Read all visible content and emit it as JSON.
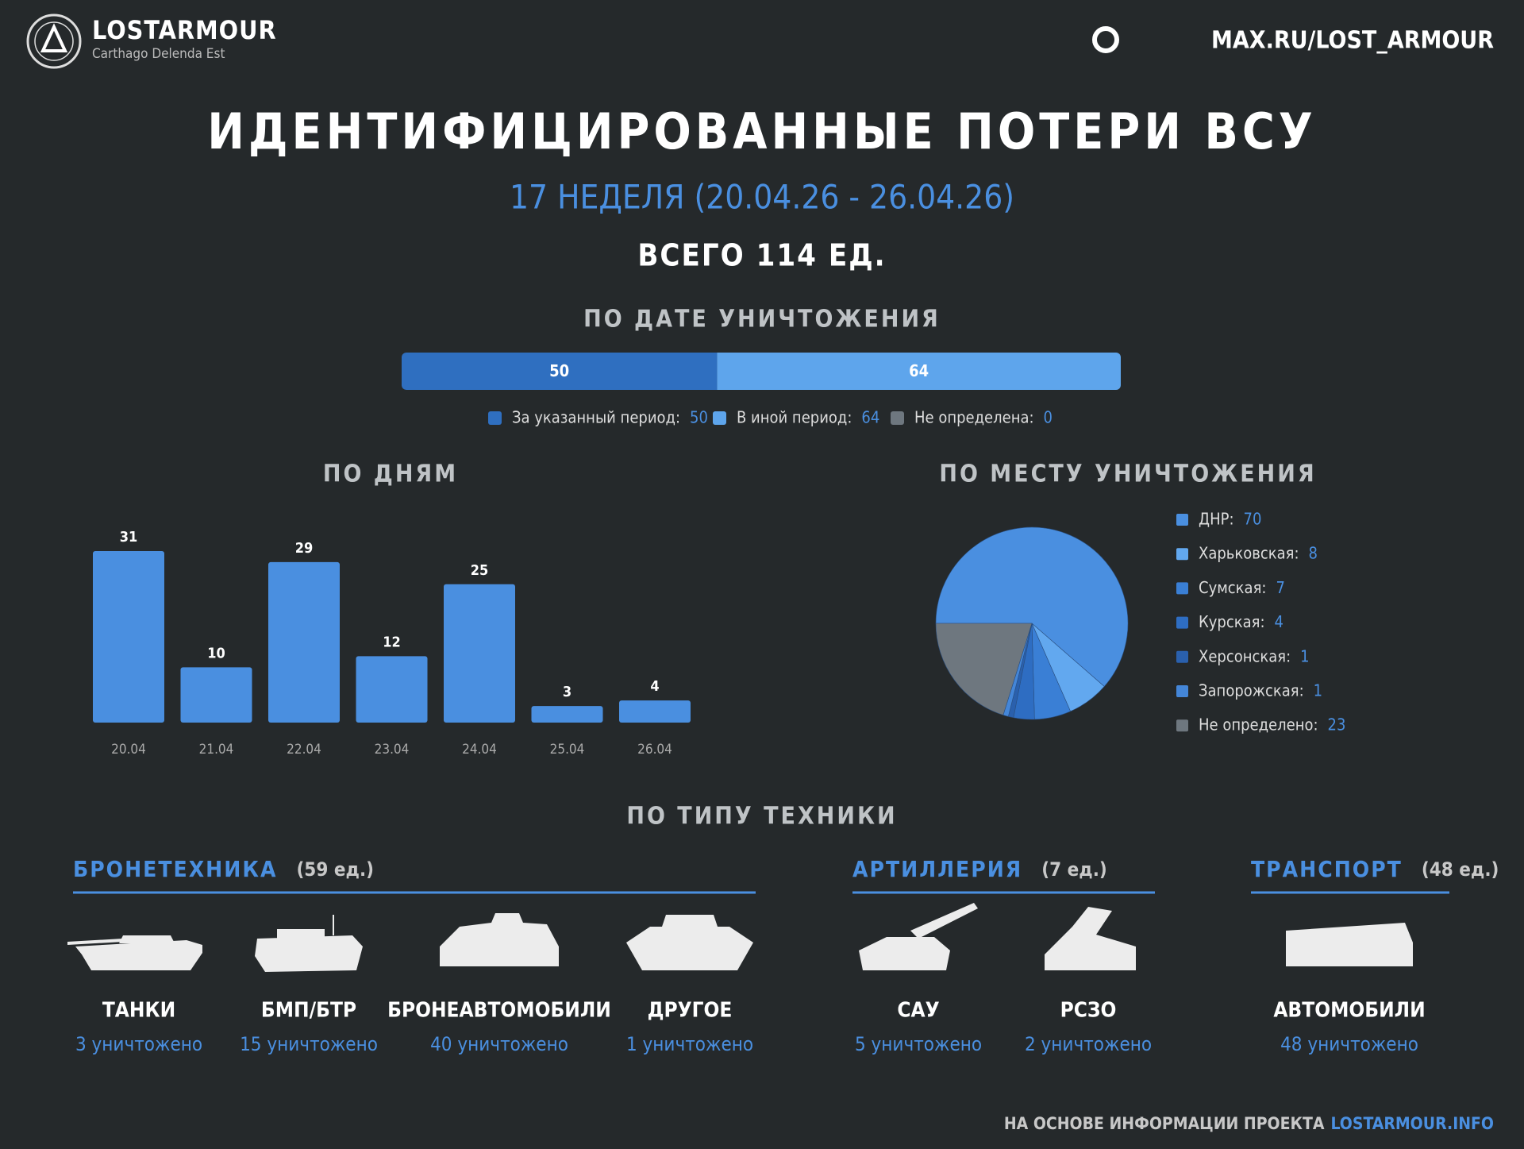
{
  "header": {
    "brand": "LOSTARMOUR",
    "tagline": "Carthago Delenda Est",
    "link": "MAX.RU/LOST_ARMOUR"
  },
  "title": "ИДЕНТИФИЦИРОВАННЫЕ ПОТЕРИ ВСУ",
  "subtitle": "17 НЕДЕЛЯ (20.04.26 - 26.04.26)",
  "total": "ВСЕГО 114 ЕД.",
  "chart_data": [
    {
      "type": "stacked_bar",
      "title": "ПО ДАТЕ УНИЧТОЖЕНИЯ",
      "series": [
        {
          "name": "За указанный период:",
          "color": "#2f6fc0",
          "values": [
            50
          ]
        },
        {
          "name": "В иной период:",
          "color": "#5ea5ec",
          "values": [
            64
          ]
        },
        {
          "name": "Не определена:",
          "color": "#6e777f",
          "values": [
            0
          ]
        }
      ]
    },
    {
      "type": "bar",
      "title": "ПО ДНЯМ",
      "categories": [
        "20.04",
        "21.04",
        "22.04",
        "23.04",
        "24.04",
        "25.04",
        "26.04"
      ],
      "values": [
        31,
        10,
        29,
        12,
        25,
        3,
        4
      ],
      "color": "#4a8fe0"
    },
    {
      "type": "pie",
      "title": "ПО МЕСТУ УНИЧТОЖЕНИЯ",
      "categories": [
        "ДНР:",
        "Харьковская:",
        "Сумская:",
        "Курская:",
        "Херсонская:",
        "Запорожская:",
        "Не определено:"
      ],
      "values": [
        70,
        8,
        7,
        4,
        1,
        1,
        23
      ],
      "colors": [
        "#4a8fe0",
        "#62a8ef",
        "#3a7fd5",
        "#2e6dc2",
        "#2a60ad",
        "#4486d8",
        "#6e777f"
      ]
    }
  ],
  "equipment": {
    "title": "ПО ТИПУ ТЕХНИКИ",
    "groups": [
      {
        "name": "БРОНЕТЕХНИКА",
        "count": "(59 ед.)",
        "items": [
          {
            "label": "ТАНКИ",
            "value": "3 уничтожено"
          },
          {
            "label": "БМП/БТР",
            "value": "15 уничтожено"
          },
          {
            "label": "БРОНЕАВТОМОБИЛИ",
            "value": "40 уничтожено"
          },
          {
            "label": "ДРУГОЕ",
            "value": "1 уничтожено"
          }
        ]
      },
      {
        "name": "АРТИЛЛЕРИЯ",
        "count": "(7 ед.)",
        "items": [
          {
            "label": "САУ",
            "value": "5 уничтожено"
          },
          {
            "label": "РСЗО",
            "value": "2 уничтожено"
          }
        ]
      },
      {
        "name": "ТРАНСПОРТ",
        "count": "(48 ед.)",
        "items": [
          {
            "label": "АВТОМОБИЛИ",
            "value": "48 уничтожено"
          }
        ]
      }
    ]
  },
  "footer": {
    "text": "НА ОСНОВЕ ИНФОРМАЦИИ ПРОЕКТА",
    "link": "LOSTARMOUR.INFO"
  }
}
